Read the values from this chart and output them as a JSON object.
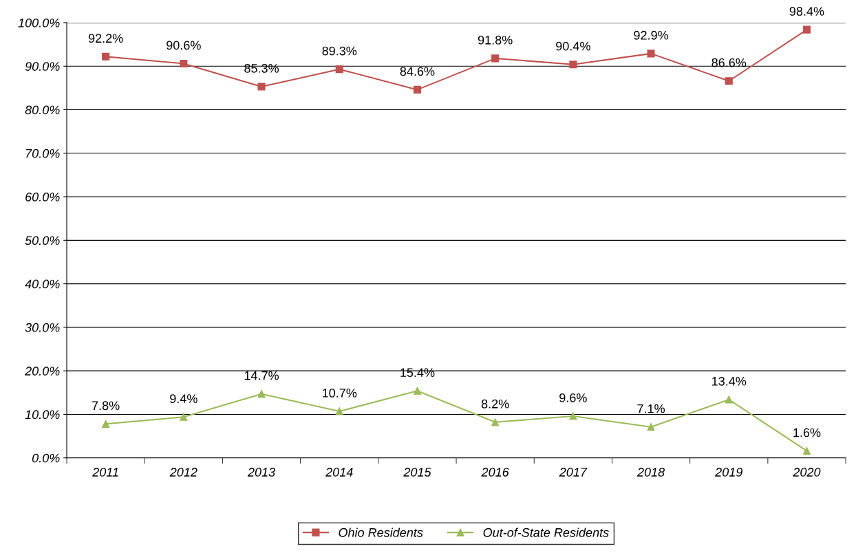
{
  "chart_data": {
    "type": "line",
    "categories": [
      "2011",
      "2012",
      "2013",
      "2014",
      "2015",
      "2016",
      "2017",
      "2018",
      "2019",
      "2020"
    ],
    "series": [
      {
        "name": "Ohio Residents",
        "color": "#c0504d",
        "marker": "square",
        "values": [
          92.2,
          90.6,
          85.3,
          89.3,
          84.6,
          91.8,
          90.4,
          92.9,
          86.6,
          98.4
        ],
        "value_labels": [
          "92.2%",
          "90.6%",
          "85.3%",
          "89.3%",
          "84.6%",
          "91.8%",
          "90.4%",
          "92.9%",
          "86.6%",
          "98.4%"
        ]
      },
      {
        "name": "Out-of-State Residents",
        "color": "#9bbb59",
        "marker": "triangle",
        "values": [
          7.8,
          9.4,
          14.7,
          10.7,
          15.4,
          8.2,
          9.6,
          7.1,
          13.4,
          1.6
        ],
        "value_labels": [
          "7.8%",
          "9.4%",
          "14.7%",
          "10.7%",
          "15.4%",
          "8.2%",
          "9.6%",
          "7.1%",
          "13.4%",
          "1.6%"
        ]
      }
    ],
    "ylim": [
      0,
      100
    ],
    "yticks": [
      {
        "value": 0,
        "label": "0.0%"
      },
      {
        "value": 10,
        "label": "10.0%"
      },
      {
        "value": 20,
        "label": "20.0%"
      },
      {
        "value": 30,
        "label": "30.0%"
      },
      {
        "value": 40,
        "label": "40.0%"
      },
      {
        "value": 50,
        "label": "50.0%"
      },
      {
        "value": 60,
        "label": "60.0%"
      },
      {
        "value": 70,
        "label": "70.0%"
      },
      {
        "value": 80,
        "label": "80.0%"
      },
      {
        "value": 90,
        "label": "90.0%"
      },
      {
        "value": 100,
        "label": "100.0%"
      }
    ],
    "grid": "y",
    "legend": "bottom",
    "line_style": "solid"
  }
}
